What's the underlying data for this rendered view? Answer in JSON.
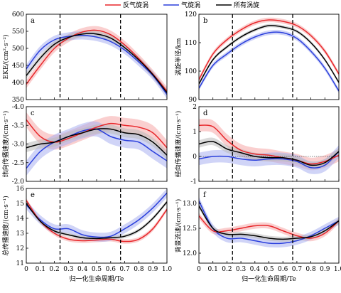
{
  "legend": [
    {
      "name": "反气旋涡",
      "color": "#e8262a"
    },
    {
      "name": "气旋涡",
      "color": "#2a3fdc"
    },
    {
      "name": "所有涡旋",
      "color": "#000000"
    }
  ],
  "colors": {
    "anticyclone": "#e8262a",
    "cyclone": "#2a3fdc",
    "all": "#000000",
    "band_anticyclone": "#f5a8a8",
    "band_cyclone": "#aab1f0",
    "band_all": "#b9b9b9"
  },
  "chart_data": [
    {
      "id": "a",
      "type": "line",
      "panel_label": "a",
      "ylabel": "EKE/(cm²·s⁻²)",
      "xlabel": "",
      "xlim": [
        0,
        1
      ],
      "ylim": [
        350,
        600
      ],
      "yticks": [
        350,
        400,
        450,
        500,
        550,
        600
      ],
      "show_xticklabels": false,
      "vlines": [
        0.24,
        0.67
      ],
      "x": [
        0,
        0.1,
        0.2,
        0.3,
        0.4,
        0.5,
        0.6,
        0.7,
        0.8,
        0.9,
        1.0
      ],
      "series": [
        {
          "name": "反气旋涡",
          "values": [
            395,
            450,
            500,
            530,
            548,
            553,
            540,
            510,
            470,
            425,
            375
          ],
          "band": 12
        },
        {
          "name": "气旋涡",
          "values": [
            440,
            495,
            525,
            535,
            538,
            533,
            520,
            495,
            460,
            420,
            365
          ],
          "band": 12
        },
        {
          "name": "所有涡旋",
          "values": [
            420,
            472,
            512,
            532,
            542,
            542,
            530,
            502,
            466,
            423,
            370
          ],
          "band": 9
        }
      ]
    },
    {
      "id": "b",
      "type": "line",
      "panel_label": "b",
      "ylabel": "涡旋半径/km",
      "xlabel": "",
      "xlim": [
        0,
        1
      ],
      "ylim": [
        90,
        120
      ],
      "yticks": [
        90,
        100,
        110,
        120
      ],
      "show_xticklabels": false,
      "vlines": [
        0.24,
        0.67
      ],
      "x": [
        0,
        0.1,
        0.2,
        0.3,
        0.4,
        0.5,
        0.6,
        0.7,
        0.8,
        0.9,
        1.0
      ],
      "series": [
        {
          "name": "反气旋涡",
          "values": [
            97,
            106,
            111,
            114.5,
            117,
            118,
            117.5,
            116,
            112.5,
            107,
            99
          ],
          "band": 0.8
        },
        {
          "name": "气旋涡",
          "values": [
            94,
            102,
            106,
            109.5,
            112,
            113.5,
            113.5,
            111.5,
            107,
            101,
            93
          ],
          "band": 0.8
        },
        {
          "name": "所有涡旋",
          "values": [
            95.5,
            104,
            108.5,
            112,
            114.5,
            116,
            115.5,
            114,
            110,
            104,
            96
          ],
          "band": 0.6
        }
      ]
    },
    {
      "id": "c",
      "type": "line",
      "panel_label": "c",
      "ylabel": "纬向传播速度/(cm·s⁻¹)",
      "xlabel": "",
      "xlim": [
        0,
        1
      ],
      "ylim": [
        -2.0,
        -4.0
      ],
      "yticks": [
        -2.0,
        -2.5,
        -3.0,
        -3.5,
        -4.0
      ],
      "show_xticklabels": false,
      "vlines": [
        0.24,
        0.67
      ],
      "x": [
        0,
        0.1,
        0.2,
        0.3,
        0.4,
        0.5,
        0.6,
        0.7,
        0.8,
        0.9,
        1.0
      ],
      "series": [
        {
          "name": "反气旋涡",
          "values": [
            -3.65,
            -3.2,
            -3.05,
            -3.15,
            -3.3,
            -3.45,
            -3.55,
            -3.5,
            -3.45,
            -3.3,
            -2.9
          ],
          "band": 0.2
        },
        {
          "name": "气旋涡",
          "values": [
            -2.35,
            -2.8,
            -3.05,
            -3.2,
            -3.35,
            -3.4,
            -3.2,
            -3.1,
            -3.05,
            -2.8,
            -2.55
          ],
          "band": 0.2
        },
        {
          "name": "所有涡旋",
          "values": [
            -2.9,
            -3.0,
            -3.05,
            -3.2,
            -3.3,
            -3.4,
            -3.4,
            -3.3,
            -3.25,
            -3.05,
            -2.7
          ],
          "band": 0.12
        }
      ]
    },
    {
      "id": "d",
      "type": "line",
      "panel_label": "d",
      "ylabel": "经向传播速度/(cm·s⁻¹)",
      "xlabel": "",
      "xlim": [
        0,
        1
      ],
      "ylim": [
        -1,
        2
      ],
      "yticks": [
        -1,
        0,
        1,
        2
      ],
      "show_xticklabels": false,
      "vlines": [
        0.24,
        0.67
      ],
      "hline": 0,
      "x": [
        0,
        0.1,
        0.2,
        0.3,
        0.4,
        0.5,
        0.6,
        0.7,
        0.8,
        0.9,
        1.0
      ],
      "series": [
        {
          "name": "反气旋涡",
          "values": [
            1.25,
            1.2,
            0.65,
            0.25,
            0.1,
            0.05,
            -0.05,
            -0.15,
            -0.3,
            -0.2,
            0.05
          ],
          "band": 0.25
        },
        {
          "name": "气旋涡",
          "values": [
            -0.1,
            0.0,
            0.0,
            -0.1,
            -0.15,
            -0.1,
            -0.1,
            -0.2,
            -0.45,
            -0.35,
            0.2
          ],
          "band": 0.25
        },
        {
          "name": "所有涡旋",
          "values": [
            0.5,
            0.6,
            0.3,
            0.15,
            0.0,
            -0.05,
            -0.05,
            -0.15,
            -0.35,
            -0.25,
            0.2
          ],
          "band": 0.15
        }
      ]
    },
    {
      "id": "e",
      "type": "line",
      "panel_label": "e",
      "ylabel": "总传播速度/(cm·s⁻¹)",
      "xlabel": "归一化生命周期/Te",
      "xlim": [
        0,
        1
      ],
      "ylim": [
        11,
        16
      ],
      "yticks": [
        11,
        12,
        13,
        14,
        15,
        16
      ],
      "show_xticklabels": true,
      "xticks": [
        0,
        0.1,
        0.2,
        0.3,
        0.4,
        0.5,
        0.6,
        0.7,
        0.8,
        0.9,
        1.0
      ],
      "vlines": [
        0.24,
        0.67
      ],
      "x": [
        0,
        0.1,
        0.2,
        0.3,
        0.4,
        0.5,
        0.6,
        0.7,
        0.8,
        0.9,
        1.0
      ],
      "series": [
        {
          "name": "反气旋涡",
          "values": [
            15.2,
            13.8,
            13.0,
            12.6,
            12.5,
            12.55,
            12.6,
            12.45,
            12.6,
            13.3,
            14.6
          ],
          "band": 0.15
        },
        {
          "name": "气旋涡",
          "values": [
            14.9,
            13.9,
            13.3,
            13.3,
            12.9,
            12.75,
            12.8,
            13.3,
            13.9,
            14.7,
            15.7
          ],
          "band": 0.3
        },
        {
          "name": "所有涡旋",
          "values": [
            15.0,
            13.8,
            13.15,
            12.9,
            12.7,
            12.65,
            12.7,
            12.8,
            13.2,
            14.0,
            15.1
          ],
          "band": 0.12
        }
      ]
    },
    {
      "id": "f",
      "type": "line",
      "panel_label": "f",
      "ylabel": "背景流速/(cm·s⁻¹)",
      "xlabel": "归一化生命周期/Te",
      "xlim": [
        0,
        1
      ],
      "ylim": [
        11.8,
        13.3
      ],
      "yticks": [
        12.0,
        12.5,
        13.0
      ],
      "show_xticklabels": true,
      "xticks": [
        0,
        0.1,
        0.2,
        0.3,
        0.4,
        0.5,
        0.6,
        0.7,
        0.8,
        0.9,
        1.0
      ],
      "vlines": [
        0.24,
        0.67
      ],
      "x": [
        0,
        0.1,
        0.2,
        0.3,
        0.4,
        0.5,
        0.6,
        0.7,
        0.8,
        0.9,
        1.0
      ],
      "series": [
        {
          "name": "反气旋涡",
          "values": [
            12.75,
            12.45,
            12.45,
            12.5,
            12.55,
            12.55,
            12.45,
            12.35,
            12.3,
            12.4,
            12.65
          ],
          "band": 0.06
        },
        {
          "name": "气旋涡",
          "values": [
            13.05,
            12.5,
            12.3,
            12.3,
            12.25,
            12.2,
            12.2,
            12.25,
            12.35,
            12.5,
            12.65
          ],
          "band": 0.08
        },
        {
          "name": "所有涡旋",
          "values": [
            12.95,
            12.5,
            12.38,
            12.38,
            12.35,
            12.3,
            12.28,
            12.3,
            12.33,
            12.45,
            12.65
          ],
          "band": 0.05
        }
      ]
    }
  ]
}
